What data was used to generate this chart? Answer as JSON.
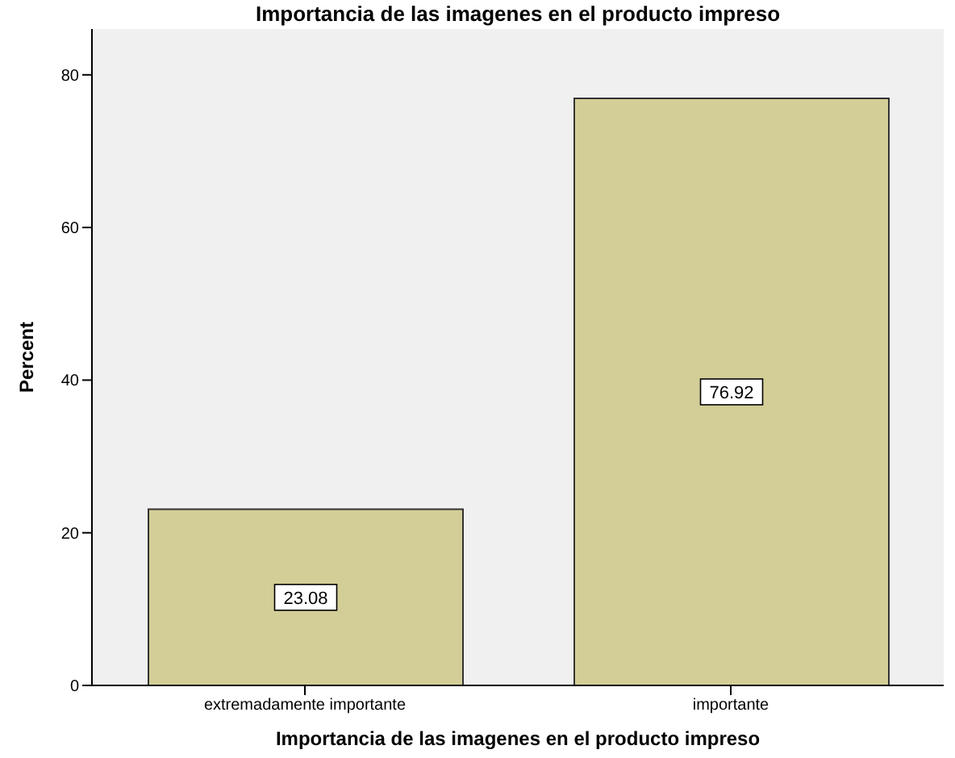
{
  "chart_data": {
    "type": "bar",
    "title": "Importancia de las imagenes en el producto impreso",
    "xlabel": "Importancia de las imagenes en el producto impreso",
    "ylabel": "Percent",
    "categories": [
      "extremadamente importante",
      "importante"
    ],
    "values": [
      23.08,
      76.92
    ],
    "color": "#d3ce97",
    "ylim": [
      0,
      86
    ],
    "yticks": [
      0,
      20,
      40,
      60,
      80
    ],
    "grid": false,
    "data_labels": true
  }
}
